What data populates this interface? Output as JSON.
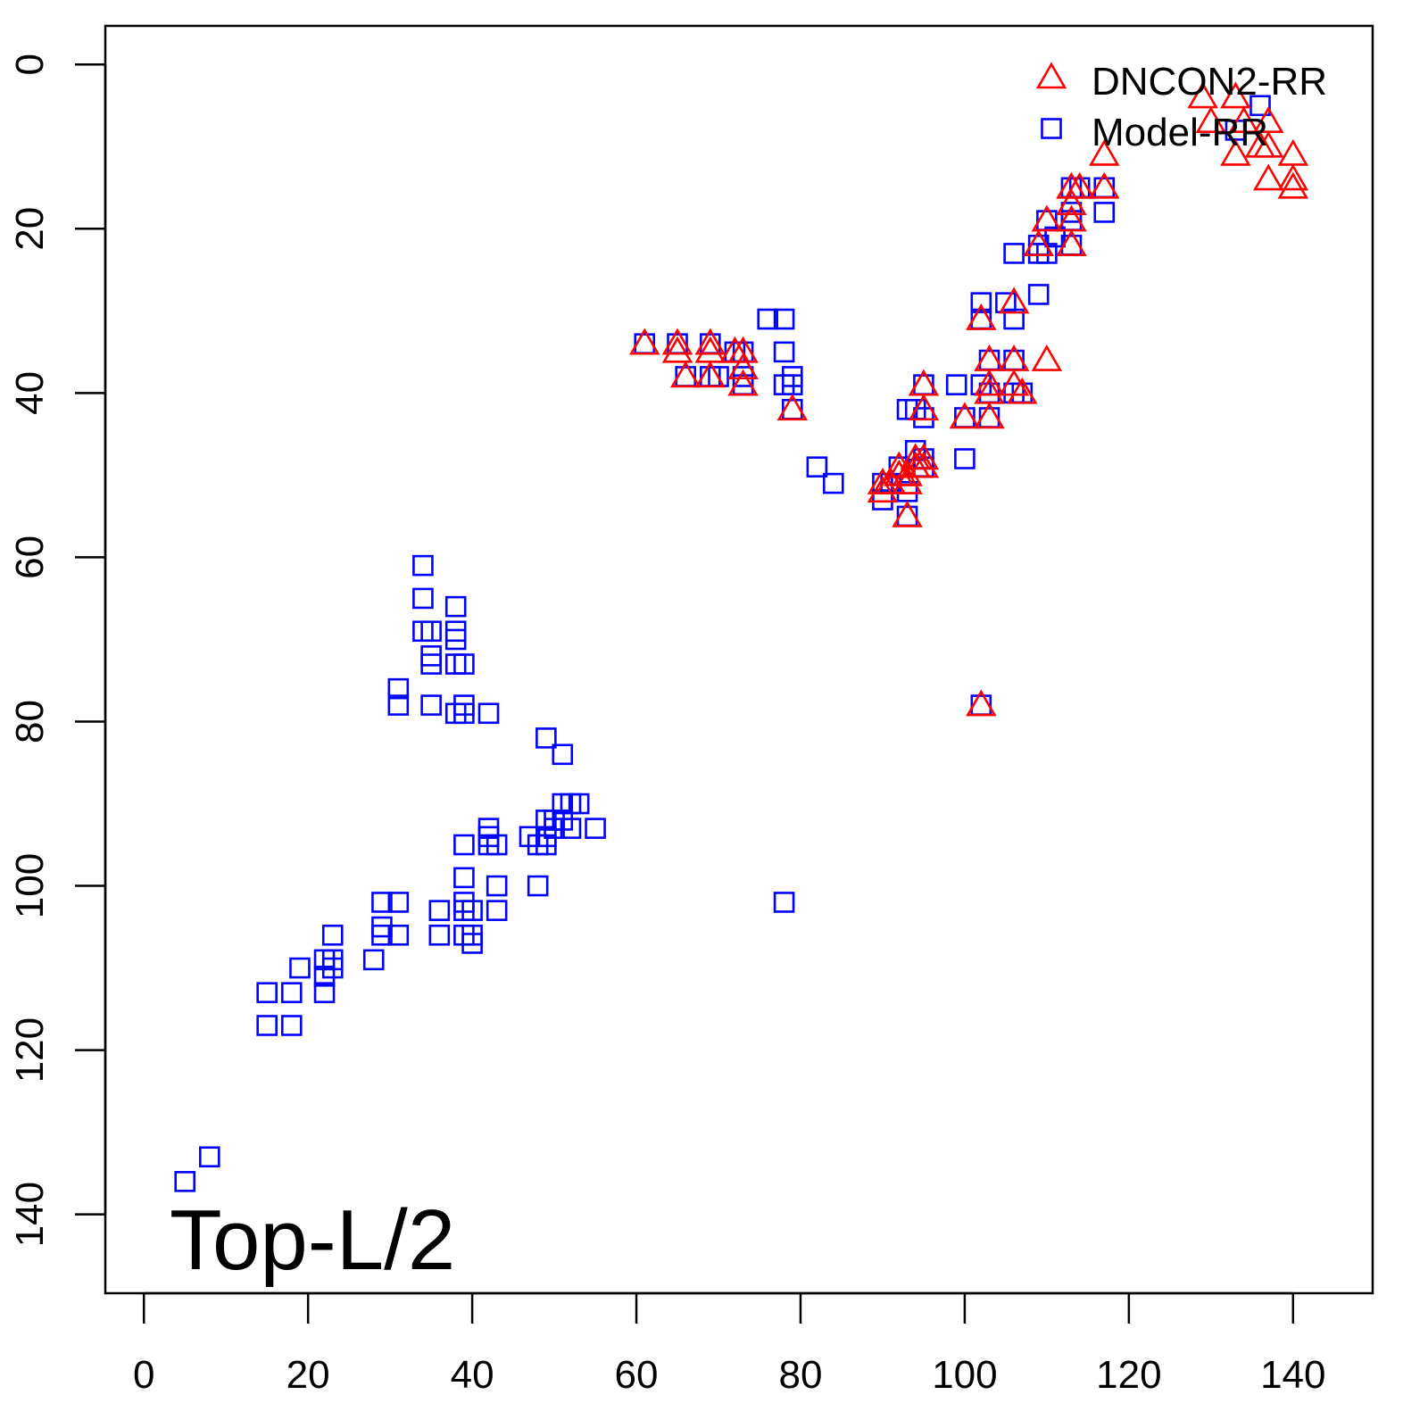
{
  "chart_data": {
    "type": "scatter",
    "title": "",
    "xlabel": "",
    "ylabel": "",
    "annotation": "Top-L/2",
    "xlim": [
      -4.7,
      149.7
    ],
    "ylim": [
      149.6,
      -4.7
    ],
    "y_reversed": true,
    "xticks": [
      0,
      20,
      40,
      60,
      80,
      100,
      120,
      140
    ],
    "yticks": [
      0,
      20,
      40,
      60,
      80,
      100,
      120,
      140
    ],
    "grid": false,
    "legend_position": "top-right",
    "series": [
      {
        "name": "DNCON2-RR",
        "marker": "triangle",
        "color": "#ff0000",
        "points": [
          [
            61,
            34
          ],
          [
            65,
            34
          ],
          [
            65,
            35
          ],
          [
            66,
            38
          ],
          [
            69,
            34
          ],
          [
            69,
            35
          ],
          [
            69,
            38
          ],
          [
            72,
            35
          ],
          [
            73,
            35
          ],
          [
            73,
            37
          ],
          [
            73,
            39
          ],
          [
            79,
            42
          ],
          [
            90,
            51
          ],
          [
            90,
            52
          ],
          [
            91,
            51
          ],
          [
            92,
            50
          ],
          [
            92,
            49
          ],
          [
            93,
            50
          ],
          [
            93,
            55
          ],
          [
            93,
            51
          ],
          [
            94,
            49
          ],
          [
            94,
            48
          ],
          [
            95,
            39
          ],
          [
            95,
            42
          ],
          [
            95,
            48
          ],
          [
            95,
            49
          ],
          [
            100,
            43
          ],
          [
            102,
            31
          ],
          [
            102,
            78
          ],
          [
            103,
            36
          ],
          [
            103,
            39
          ],
          [
            103,
            40
          ],
          [
            103,
            43
          ],
          [
            106,
            29
          ],
          [
            106,
            36
          ],
          [
            106,
            39
          ],
          [
            107,
            40
          ],
          [
            109,
            22
          ],
          [
            110,
            19
          ],
          [
            110,
            36
          ],
          [
            113,
            15
          ],
          [
            113,
            17
          ],
          [
            113,
            19
          ],
          [
            113,
            22
          ],
          [
            114,
            15
          ],
          [
            117,
            11
          ],
          [
            117,
            15
          ],
          [
            129,
            4
          ],
          [
            130,
            7
          ],
          [
            133,
            4
          ],
          [
            133,
            11
          ],
          [
            134,
            7
          ],
          [
            136,
            10
          ],
          [
            137,
            7
          ],
          [
            137,
            10
          ],
          [
            137,
            14
          ],
          [
            140,
            11
          ],
          [
            140,
            14
          ],
          [
            140,
            15
          ]
        ]
      },
      {
        "name": "Model-RR",
        "marker": "square",
        "color": "#0000ff",
        "points": [
          [
            5,
            136
          ],
          [
            8,
            133
          ],
          [
            15,
            113
          ],
          [
            15,
            117
          ],
          [
            18,
            113
          ],
          [
            18,
            117
          ],
          [
            19,
            110
          ],
          [
            22,
            113
          ],
          [
            22,
            111
          ],
          [
            22,
            109
          ],
          [
            23,
            110
          ],
          [
            23,
            106
          ],
          [
            23,
            109
          ],
          [
            28,
            109
          ],
          [
            29,
            102
          ],
          [
            29,
            105
          ],
          [
            29,
            106
          ],
          [
            31,
            102
          ],
          [
            31,
            106
          ],
          [
            31,
            76
          ],
          [
            31,
            78
          ],
          [
            34,
            61
          ],
          [
            34,
            65
          ],
          [
            34,
            69
          ],
          [
            35,
            69
          ],
          [
            35,
            72
          ],
          [
            35,
            73
          ],
          [
            35,
            78
          ],
          [
            36,
            103
          ],
          [
            36,
            106
          ],
          [
            38,
            66
          ],
          [
            38,
            69
          ],
          [
            38,
            70
          ],
          [
            38,
            73
          ],
          [
            38,
            79
          ],
          [
            39,
            95
          ],
          [
            39,
            99
          ],
          [
            39,
            102
          ],
          [
            39,
            103
          ],
          [
            39,
            106
          ],
          [
            39,
            78
          ],
          [
            39,
            79
          ],
          [
            39,
            73
          ],
          [
            40,
            103
          ],
          [
            40,
            106
          ],
          [
            40,
            107
          ],
          [
            42,
            79
          ],
          [
            42,
            93
          ],
          [
            42,
            94
          ],
          [
            42,
            95
          ],
          [
            43,
            95
          ],
          [
            43,
            100
          ],
          [
            43,
            103
          ],
          [
            47,
            94
          ],
          [
            48,
            95
          ],
          [
            48,
            100
          ],
          [
            49,
            82
          ],
          [
            49,
            92
          ],
          [
            49,
            94
          ],
          [
            49,
            95
          ],
          [
            50,
            92
          ],
          [
            50,
            93
          ],
          [
            51,
            84
          ],
          [
            51,
            90
          ],
          [
            51,
            92
          ],
          [
            52,
            90
          ],
          [
            52,
            93
          ],
          [
            53,
            90
          ],
          [
            55,
            93
          ],
          [
            61,
            34
          ],
          [
            65,
            34
          ],
          [
            66,
            38
          ],
          [
            69,
            34
          ],
          [
            69,
            38
          ],
          [
            70,
            38
          ],
          [
            72,
            35
          ],
          [
            73,
            35
          ],
          [
            73,
            38
          ],
          [
            73,
            39
          ],
          [
            76,
            31
          ],
          [
            78,
            31
          ],
          [
            78,
            35
          ],
          [
            78,
            39
          ],
          [
            78,
            102
          ],
          [
            79,
            38
          ],
          [
            79,
            39
          ],
          [
            79,
            42
          ],
          [
            82,
            49
          ],
          [
            84,
            51
          ],
          [
            90,
            51
          ],
          [
            90,
            53
          ],
          [
            91,
            51
          ],
          [
            92,
            49
          ],
          [
            93,
            42
          ],
          [
            93,
            55
          ],
          [
            93,
            52
          ],
          [
            94,
            47
          ],
          [
            94,
            42
          ],
          [
            95,
            39
          ],
          [
            95,
            43
          ],
          [
            95,
            48
          ],
          [
            95,
            49
          ],
          [
            99,
            39
          ],
          [
            100,
            43
          ],
          [
            100,
            48
          ],
          [
            102,
            29
          ],
          [
            102,
            31
          ],
          [
            102,
            39
          ],
          [
            102,
            78
          ],
          [
            103,
            36
          ],
          [
            103,
            40
          ],
          [
            103,
            43
          ],
          [
            105,
            29
          ],
          [
            106,
            23
          ],
          [
            106,
            31
          ],
          [
            106,
            36
          ],
          [
            106,
            40
          ],
          [
            107,
            40
          ],
          [
            109,
            28
          ],
          [
            109,
            22
          ],
          [
            109,
            23
          ],
          [
            110,
            19
          ],
          [
            110,
            23
          ],
          [
            111,
            21
          ],
          [
            113,
            15
          ],
          [
            113,
            18
          ],
          [
            113,
            19
          ],
          [
            113,
            22
          ],
          [
            114,
            15
          ],
          [
            117,
            15
          ],
          [
            117,
            18
          ],
          [
            133,
            8
          ],
          [
            136,
            5
          ]
        ]
      }
    ]
  }
}
